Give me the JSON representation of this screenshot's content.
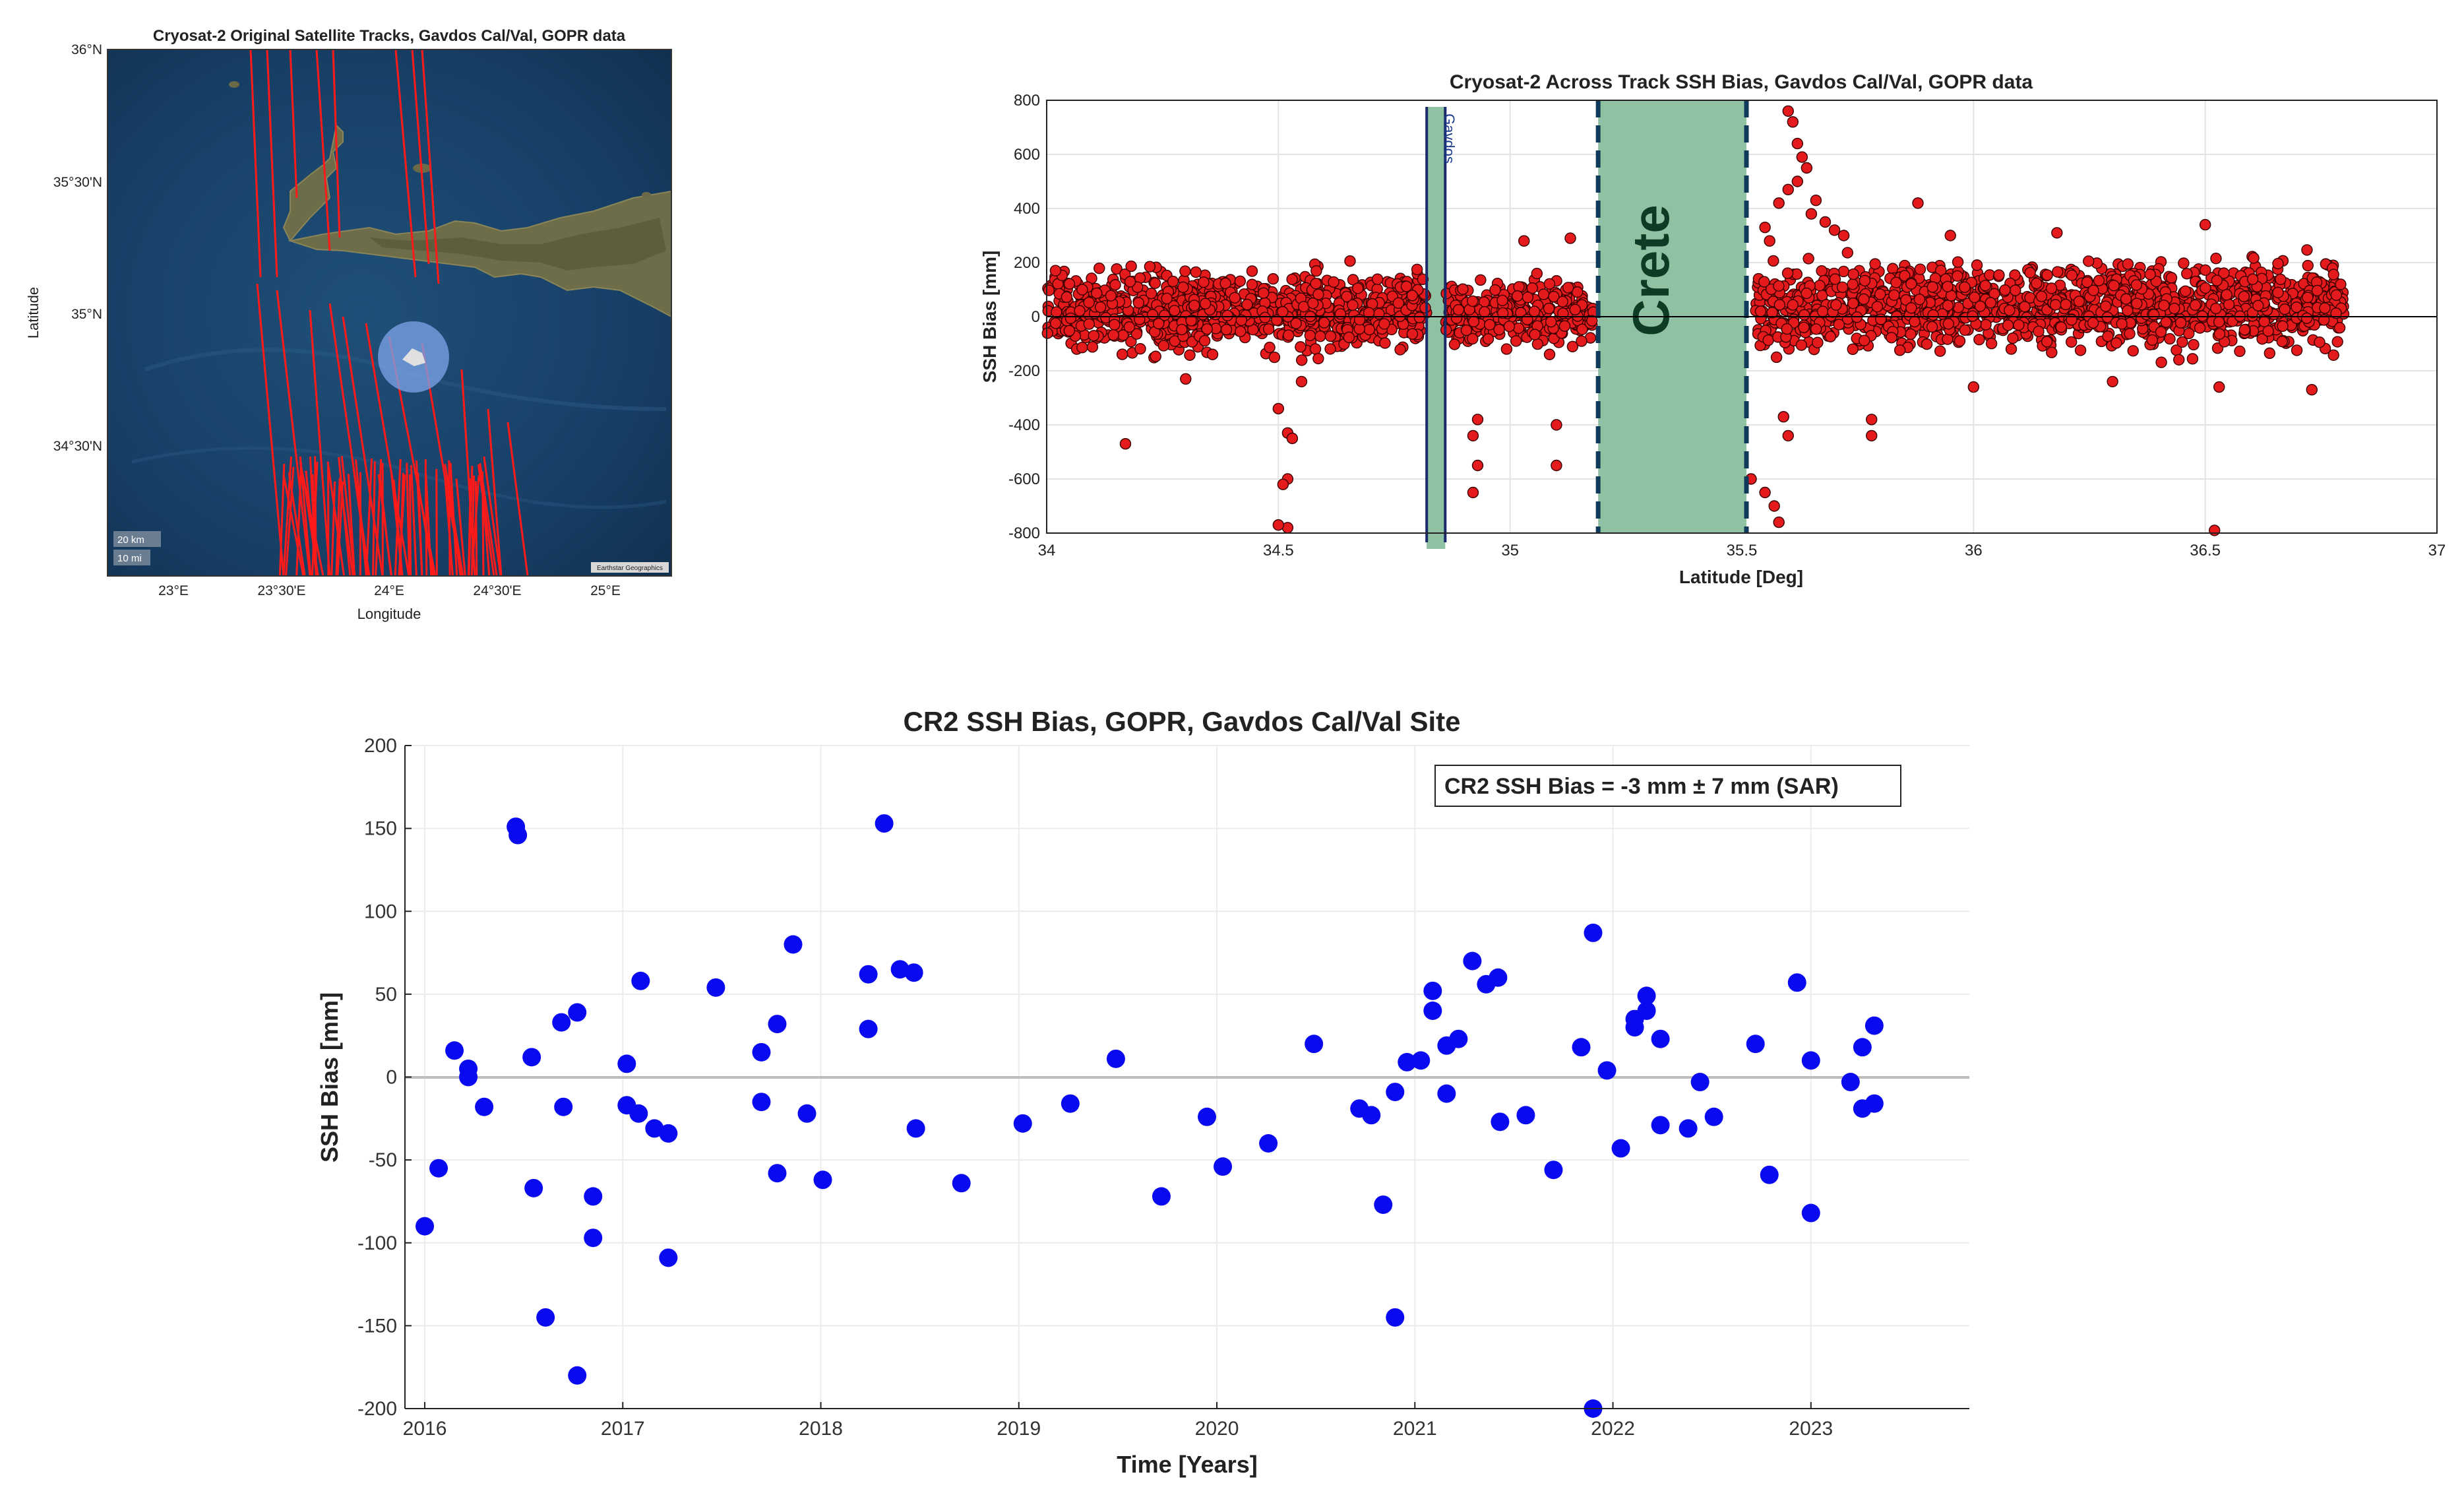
{
  "chart_data": [
    {
      "type": "map",
      "title": "Cryosat-2 Original Satellite Tracks, Gavdos Cal/Val, GOPR data",
      "xlabel": "Longitude",
      "ylabel": "Latitude",
      "x_ticks": [
        "23°E",
        "23°30'E",
        "24°E",
        "24°30'E",
        "25°E"
      ],
      "y_ticks": [
        "36°N",
        "35°30'N",
        "35°N",
        "34°30'N"
      ],
      "scale_labels": [
        "20 km",
        "10 mi"
      ],
      "attribution": "Earthstar Geographics",
      "track_color": "#ff1a1a",
      "site_marker_color": "#7aa2e6"
    },
    {
      "type": "scatter",
      "title": "Cryosat-2 Across Track SSH Bias, Gavdos Cal/Val, GOPR data",
      "xlabel": "Latitude [Deg]",
      "ylabel": "SSH Bias [mm]",
      "xlim": [
        34,
        37
      ],
      "ylim": [
        -800,
        800
      ],
      "x_ticks": [
        "34",
        "34.5",
        "35",
        "35.5",
        "36",
        "36.5",
        "37"
      ],
      "y_ticks": [
        "800",
        "600",
        "400",
        "200",
        "0",
        "-200",
        "-400",
        "-600",
        "-800"
      ],
      "x_tick_values": [
        34,
        34.5,
        35,
        35.5,
        36,
        36.5,
        37
      ],
      "y_tick_values": [
        800,
        600,
        400,
        200,
        0,
        -200,
        -400,
        -600,
        -800
      ],
      "regions": [
        {
          "label": "Gavdos",
          "from": 34.82,
          "to": 34.86,
          "color": "#8fc1a3"
        },
        {
          "label": "Crete",
          "from": 35.19,
          "to": 35.51,
          "color": "#8fc1a3"
        }
      ],
      "point_color": "#e41a1c",
      "bands": [
        {
          "from": 34.0,
          "to": 34.82,
          "center": 20,
          "spread": 120,
          "n": 900
        },
        {
          "from": 34.86,
          "to": 35.18,
          "center": 10,
          "spread": 90,
          "n": 350
        },
        {
          "from": 35.53,
          "to": 36.8,
          "center": 40,
          "spread": 130,
          "n": 1300
        }
      ],
      "outliers": [
        {
          "x": 34.17,
          "y": -470
        },
        {
          "x": 34.5,
          "y": -340
        },
        {
          "x": 34.52,
          "y": -430
        },
        {
          "x": 34.53,
          "y": -450
        },
        {
          "x": 34.52,
          "y": -600
        },
        {
          "x": 34.51,
          "y": -620
        },
        {
          "x": 34.52,
          "y": -780
        },
        {
          "x": 34.5,
          "y": -770
        },
        {
          "x": 34.93,
          "y": -380
        },
        {
          "x": 34.92,
          "y": -440
        },
        {
          "x": 34.93,
          "y": -550
        },
        {
          "x": 34.92,
          "y": -650
        },
        {
          "x": 35.1,
          "y": -400
        },
        {
          "x": 35.1,
          "y": -550
        },
        {
          "x": 35.03,
          "y": 280
        },
        {
          "x": 35.13,
          "y": 290
        },
        {
          "x": 35.52,
          "y": -600
        },
        {
          "x": 35.55,
          "y": -650
        },
        {
          "x": 35.57,
          "y": -700
        },
        {
          "x": 35.58,
          "y": -760
        },
        {
          "x": 35.59,
          "y": -370
        },
        {
          "x": 35.6,
          "y": -440
        },
        {
          "x": 35.6,
          "y": 760
        },
        {
          "x": 35.61,
          "y": 720
        },
        {
          "x": 35.62,
          "y": 640
        },
        {
          "x": 35.63,
          "y": 590
        },
        {
          "x": 35.64,
          "y": 550
        },
        {
          "x": 35.62,
          "y": 500
        },
        {
          "x": 35.6,
          "y": 470
        },
        {
          "x": 35.58,
          "y": 420
        },
        {
          "x": 35.65,
          "y": 380
        },
        {
          "x": 35.66,
          "y": 430
        },
        {
          "x": 35.68,
          "y": 350
        },
        {
          "x": 35.7,
          "y": 320
        },
        {
          "x": 35.72,
          "y": 300
        },
        {
          "x": 35.55,
          "y": 330
        },
        {
          "x": 35.56,
          "y": 280
        },
        {
          "x": 35.88,
          "y": 420
        },
        {
          "x": 35.95,
          "y": 300
        },
        {
          "x": 36.18,
          "y": 310
        },
        {
          "x": 36.5,
          "y": 340
        },
        {
          "x": 35.78,
          "y": -440
        },
        {
          "x": 35.78,
          "y": -380
        },
        {
          "x": 36.52,
          "y": -790
        },
        {
          "x": 36.53,
          "y": -260
        },
        {
          "x": 36.73,
          "y": -270
        },
        {
          "x": 36.0,
          "y": -260
        },
        {
          "x": 34.55,
          "y": -240
        },
        {
          "x": 34.3,
          "y": -230
        },
        {
          "x": 36.3,
          "y": -240
        }
      ]
    },
    {
      "type": "scatter",
      "title": "CR2 SSH Bias, GOPR, Gavdos Cal/Val  Site",
      "xlabel": "Time [Years]",
      "ylabel": "SSH Bias [mm]",
      "xlim": [
        2015.9,
        2023.8
      ],
      "ylim": [
        -200,
        200
      ],
      "x_ticks": [
        "2016",
        "2017",
        "2018",
        "2019",
        "2020",
        "2021",
        "2022",
        "2023"
      ],
      "y_ticks": [
        "200",
        "150",
        "100",
        "50",
        "0",
        "-50",
        "-100",
        "-150",
        "-200"
      ],
      "x_tick_values": [
        2016,
        2017,
        2018,
        2019,
        2020,
        2021,
        2022,
        2023
      ],
      "y_tick_values": [
        200,
        150,
        100,
        50,
        0,
        -50,
        -100,
        -150,
        -200
      ],
      "legend": "CR2 SSH Bias = -3 mm ±  7 mm (SAR)",
      "point_color": "#0a0af0",
      "points": [
        {
          "x": 2016.0,
          "y": -90
        },
        {
          "x": 2016.07,
          "y": -55
        },
        {
          "x": 2016.15,
          "y": 16
        },
        {
          "x": 2016.22,
          "y": 5
        },
        {
          "x": 2016.22,
          "y": 0
        },
        {
          "x": 2016.3,
          "y": -18
        },
        {
          "x": 2016.46,
          "y": 151
        },
        {
          "x": 2016.47,
          "y": 146
        },
        {
          "x": 2016.54,
          "y": 12
        },
        {
          "x": 2016.55,
          "y": -67
        },
        {
          "x": 2016.61,
          "y": -145
        },
        {
          "x": 2016.69,
          "y": 33
        },
        {
          "x": 2016.7,
          "y": -18
        },
        {
          "x": 2016.77,
          "y": 39
        },
        {
          "x": 2016.77,
          "y": -180
        },
        {
          "x": 2016.85,
          "y": -72
        },
        {
          "x": 2016.85,
          "y": -97
        },
        {
          "x": 2017.02,
          "y": 8
        },
        {
          "x": 2017.02,
          "y": -17
        },
        {
          "x": 2017.08,
          "y": -22
        },
        {
          "x": 2017.09,
          "y": 58
        },
        {
          "x": 2017.16,
          "y": -31
        },
        {
          "x": 2017.23,
          "y": -34
        },
        {
          "x": 2017.23,
          "y": -109
        },
        {
          "x": 2017.47,
          "y": 54
        },
        {
          "x": 2017.7,
          "y": -15
        },
        {
          "x": 2017.7,
          "y": 15
        },
        {
          "x": 2017.78,
          "y": 32
        },
        {
          "x": 2017.78,
          "y": -58
        },
        {
          "x": 2017.86,
          "y": 80
        },
        {
          "x": 2017.93,
          "y": -22
        },
        {
          "x": 2018.01,
          "y": -62
        },
        {
          "x": 2018.24,
          "y": 62
        },
        {
          "x": 2018.24,
          "y": 29
        },
        {
          "x": 2018.32,
          "y": 153
        },
        {
          "x": 2018.4,
          "y": 65
        },
        {
          "x": 2018.47,
          "y": 63
        },
        {
          "x": 2018.48,
          "y": -31
        },
        {
          "x": 2018.71,
          "y": -64
        },
        {
          "x": 2019.02,
          "y": -28
        },
        {
          "x": 2019.26,
          "y": -16
        },
        {
          "x": 2019.49,
          "y": 11
        },
        {
          "x": 2019.72,
          "y": -72
        },
        {
          "x": 2019.95,
          "y": -24
        },
        {
          "x": 2020.03,
          "y": -54
        },
        {
          "x": 2020.26,
          "y": -40
        },
        {
          "x": 2020.49,
          "y": 20
        },
        {
          "x": 2020.72,
          "y": -19
        },
        {
          "x": 2020.78,
          "y": -23
        },
        {
          "x": 2020.84,
          "y": -77
        },
        {
          "x": 2020.9,
          "y": -9
        },
        {
          "x": 2020.9,
          "y": -145
        },
        {
          "x": 2020.96,
          "y": 9
        },
        {
          "x": 2021.03,
          "y": 10
        },
        {
          "x": 2021.09,
          "y": 52
        },
        {
          "x": 2021.09,
          "y": 40
        },
        {
          "x": 2021.16,
          "y": 19
        },
        {
          "x": 2021.16,
          "y": -10
        },
        {
          "x": 2021.22,
          "y": 23
        },
        {
          "x": 2021.29,
          "y": 70
        },
        {
          "x": 2021.36,
          "y": 56
        },
        {
          "x": 2021.42,
          "y": 60
        },
        {
          "x": 2021.43,
          "y": -27
        },
        {
          "x": 2021.56,
          "y": -23
        },
        {
          "x": 2021.7,
          "y": -56
        },
        {
          "x": 2021.84,
          "y": 18
        },
        {
          "x": 2021.9,
          "y": 87
        },
        {
          "x": 2021.9,
          "y": -200
        },
        {
          "x": 2021.97,
          "y": 4
        },
        {
          "x": 2022.04,
          "y": -43
        },
        {
          "x": 2022.11,
          "y": 30
        },
        {
          "x": 2022.11,
          "y": 35
        },
        {
          "x": 2022.17,
          "y": 49
        },
        {
          "x": 2022.17,
          "y": 40
        },
        {
          "x": 2022.24,
          "y": 23
        },
        {
          "x": 2022.24,
          "y": -29
        },
        {
          "x": 2022.38,
          "y": -31
        },
        {
          "x": 2022.44,
          "y": -3
        },
        {
          "x": 2022.51,
          "y": -24
        },
        {
          "x": 2022.72,
          "y": 20
        },
        {
          "x": 2022.79,
          "y": -59
        },
        {
          "x": 2022.93,
          "y": 57
        },
        {
          "x": 2023.0,
          "y": 10
        },
        {
          "x": 2023.0,
          "y": -82
        },
        {
          "x": 2023.2,
          "y": -3
        },
        {
          "x": 2023.26,
          "y": 18
        },
        {
          "x": 2023.26,
          "y": -19
        },
        {
          "x": 2023.32,
          "y": 31
        },
        {
          "x": 2023.32,
          "y": -16
        }
      ]
    }
  ]
}
